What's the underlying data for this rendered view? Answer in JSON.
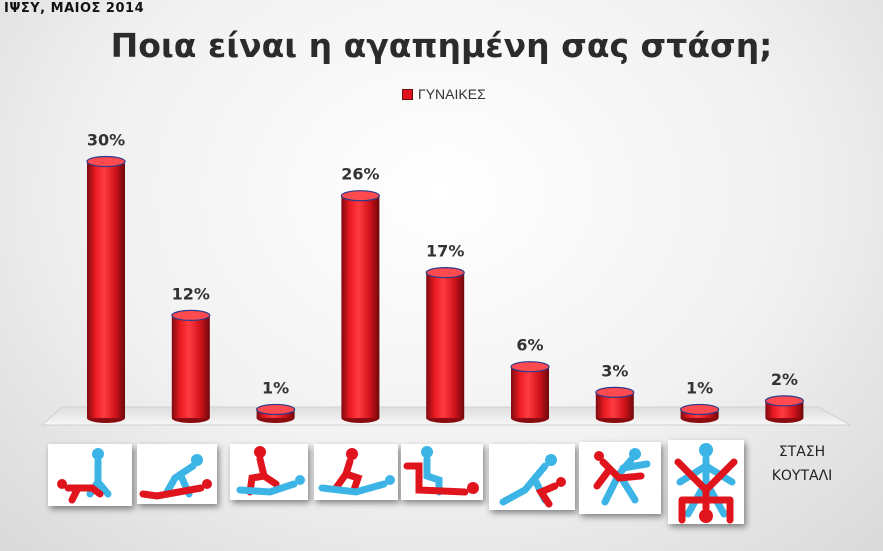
{
  "source_note": "ΙΨΣΥ, ΜΑΙΟΣ 2014",
  "chart_data": {
    "type": "bar",
    "title": "Ποια είναι η αγαπημένη σας στάση;",
    "legend": {
      "position": "top-center"
    },
    "series": [
      {
        "name": "ΓΥΝΑΙΚΕΣ",
        "color": "#e0141c",
        "values": [
          30,
          12,
          1,
          26,
          17,
          6,
          3,
          1,
          2
        ]
      }
    ],
    "value_labels": [
      "30%",
      "12%",
      "1%",
      "26%",
      "17%",
      "6%",
      "3%",
      "1%",
      "2%"
    ],
    "categories": [
      "",
      "",
      "",
      "",
      "",
      "",
      "",
      "",
      "ΣΤΑΣΗ ΚΟΥΤΑΛΙ"
    ],
    "category_icons": [
      "couple-position-icon-1",
      "couple-position-icon-2",
      "couple-position-icon-3",
      "couple-position-icon-4",
      "couple-position-icon-5",
      "couple-position-icon-6",
      "couple-position-icon-7",
      "couple-position-icon-8"
    ],
    "ylim": [
      0,
      30
    ],
    "grid": false,
    "style": "3d-cylinder"
  }
}
